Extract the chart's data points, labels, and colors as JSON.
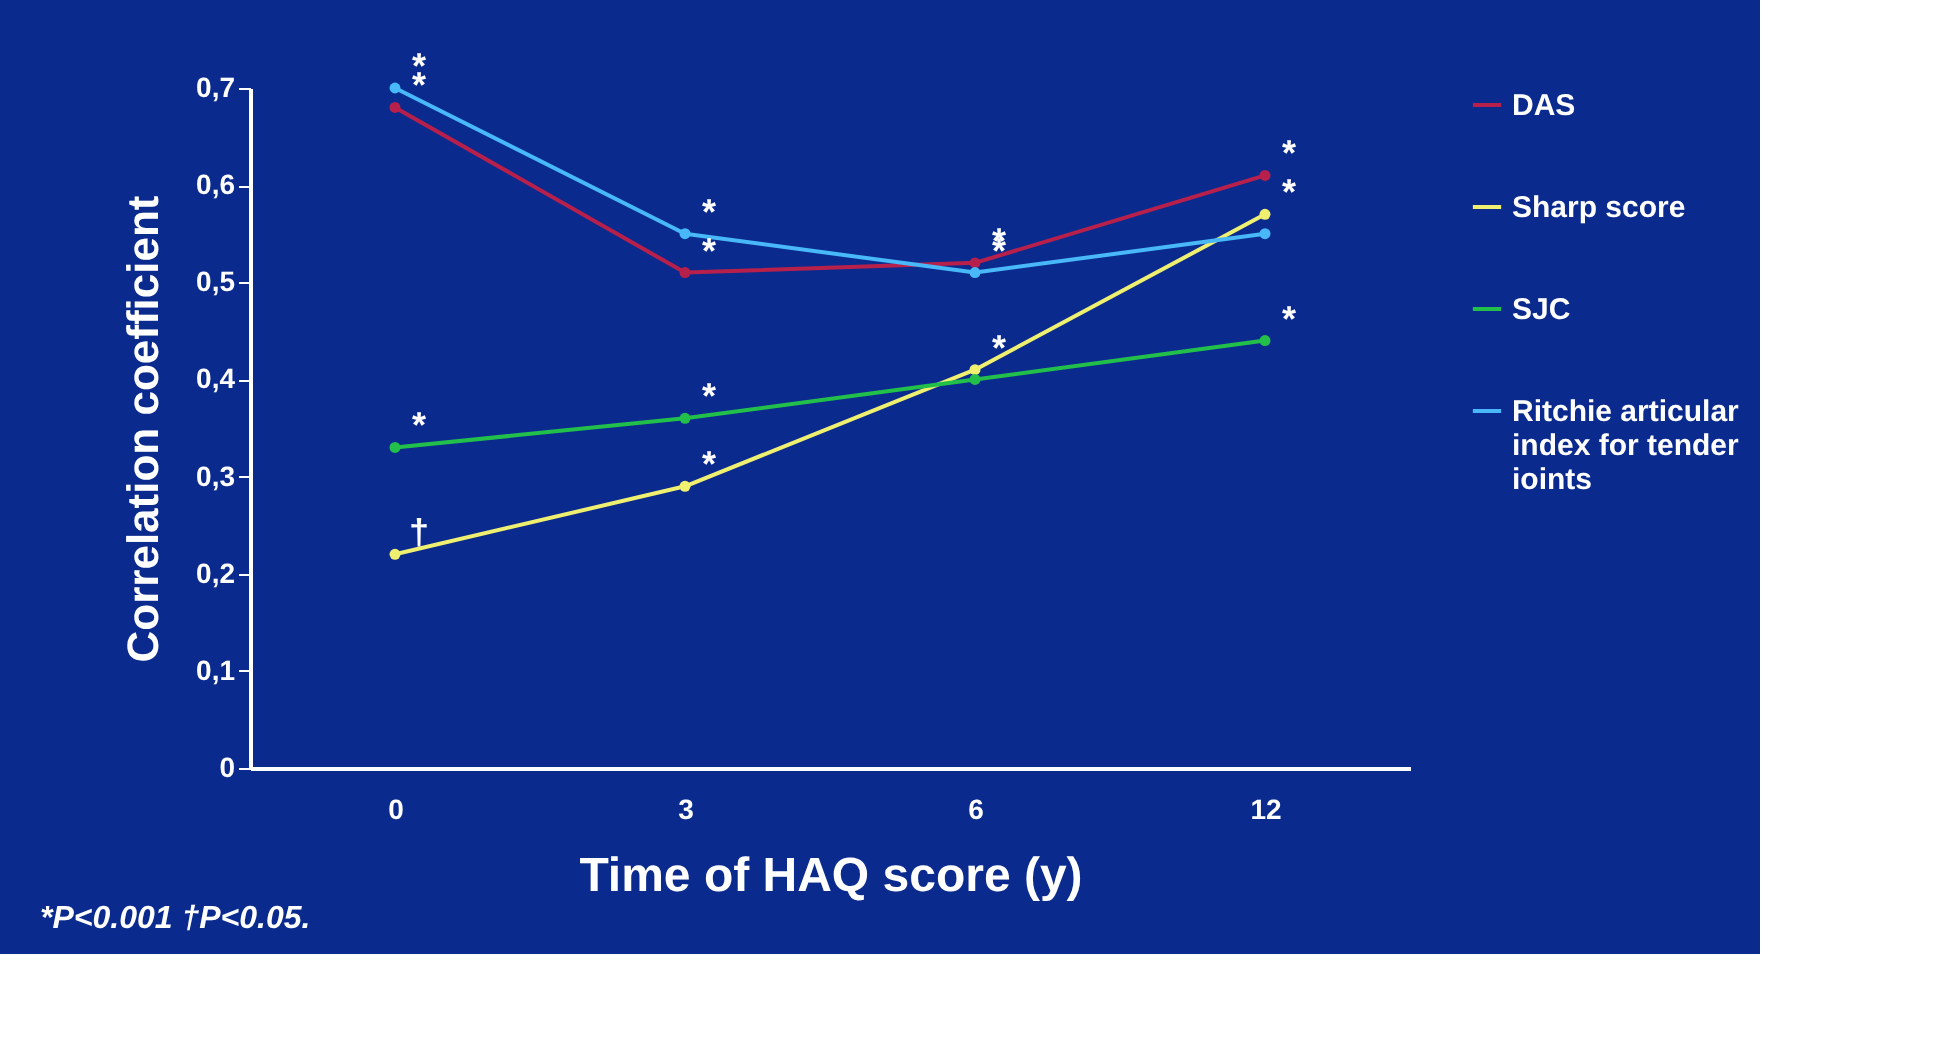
{
  "chart_data": {
    "type": "line",
    "xlabel": "Time of HAQ score (y)",
    "ylabel": "Correlation coefficient",
    "categories": [
      "0",
      "3",
      "6",
      "12"
    ],
    "series": [
      {
        "name": "DAS",
        "color": "#b8204c",
        "values": [
          0.68,
          0.51,
          0.52,
          0.61
        ]
      },
      {
        "name": "Sharp score",
        "color": "#f0f070",
        "values": [
          0.22,
          0.29,
          0.41,
          0.57
        ]
      },
      {
        "name": "SJC",
        "color": "#22c04a",
        "values": [
          0.33,
          0.36,
          0.4,
          0.44
        ]
      },
      {
        "name": "Ritchie articular index for tender ioints",
        "color": "#48b8f8",
        "values": [
          0.7,
          0.55,
          0.51,
          0.55
        ]
      }
    ],
    "ylim": [
      0,
      0.7
    ],
    "yticks": [
      0,
      {
        "value": 0.1,
        "label": "0,1"
      },
      {
        "value": 0.2,
        "label": "0,2"
      },
      {
        "value": 0.3,
        "label": "0,3"
      },
      {
        "value": 0.4,
        "label": "0,4"
      },
      {
        "value": 0.5,
        "label": "0,5"
      },
      {
        "value": 0.6,
        "label": "0,6"
      },
      {
        "value": 0.7,
        "label": "0,7"
      }
    ],
    "grid": false,
    "legend": "right",
    "marker": "circle",
    "line_style": "solid",
    "annotations": [
      {
        "text": "*",
        "x": "0",
        "y": 0.7
      },
      {
        "text": "*",
        "x": "0",
        "y": 0.68
      },
      {
        "text": "*",
        "x": "0",
        "y": 0.33
      },
      {
        "text": "†",
        "x": "0",
        "y": 0.22
      },
      {
        "text": "*",
        "x": "3",
        "y": 0.55
      },
      {
        "text": "*",
        "x": "3",
        "y": 0.51
      },
      {
        "text": "*",
        "x": "3",
        "y": 0.36
      },
      {
        "text": "*",
        "x": "3",
        "y": 0.29
      },
      {
        "text": "*",
        "x": "6",
        "y": 0.52
      },
      {
        "text": "*",
        "x": "6",
        "y": 0.51
      },
      {
        "text": "*",
        "x": "6",
        "y": 0.41
      },
      {
        "text": "*",
        "x": "12",
        "y": 0.61
      },
      {
        "text": "*",
        "x": "12",
        "y": 0.57
      },
      {
        "text": "*",
        "x": "12",
        "y": 0.44
      },
      "*P<0.001  †P<0.05."
    ]
  }
}
